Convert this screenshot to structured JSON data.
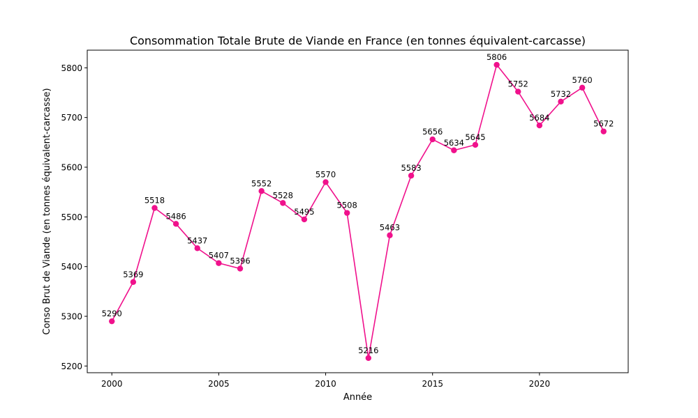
{
  "chart_data": {
    "type": "line",
    "title": "Consommation Totale Brute de Viande en France (en tonnes équivalent-carcasse)",
    "xlabel": "Année",
    "ylabel": "Conso Brut de Viande (en tonnes équivalent-carcasse)",
    "x": [
      2000,
      2001,
      2002,
      2003,
      2004,
      2005,
      2006,
      2007,
      2008,
      2009,
      2010,
      2011,
      2012,
      2013,
      2014,
      2015,
      2016,
      2017,
      2018,
      2019,
      2020,
      2021,
      2022,
      2023
    ],
    "values": [
      5290,
      5369,
      5518,
      5486,
      5437,
      5407,
      5396,
      5552,
      5528,
      5495,
      5570,
      5508,
      5216,
      5463,
      5583,
      5656,
      5634,
      5645,
      5806,
      5752,
      5684,
      5732,
      5760,
      5672
    ],
    "data_labels": [
      "5290",
      "5369",
      "5518",
      "5486",
      "5437",
      "5407",
      "5396",
      "5552",
      "5528",
      "5495",
      "5570",
      "5508",
      "5216",
      "5463",
      "5583",
      "5656",
      "5634",
      "5645",
      "5806",
      "5752",
      "5684",
      "5732",
      "5760",
      "5672"
    ],
    "xticks": [
      2000,
      2005,
      2010,
      2015,
      2020
    ],
    "yticks": [
      5200,
      5300,
      5400,
      5500,
      5600,
      5700,
      5800
    ],
    "xlim": [
      1998.85,
      2024.15
    ],
    "ylim": [
      5186.5,
      5835.5
    ],
    "grid": false,
    "legend": "none",
    "marker": "circle",
    "color": "#f0118c"
  }
}
